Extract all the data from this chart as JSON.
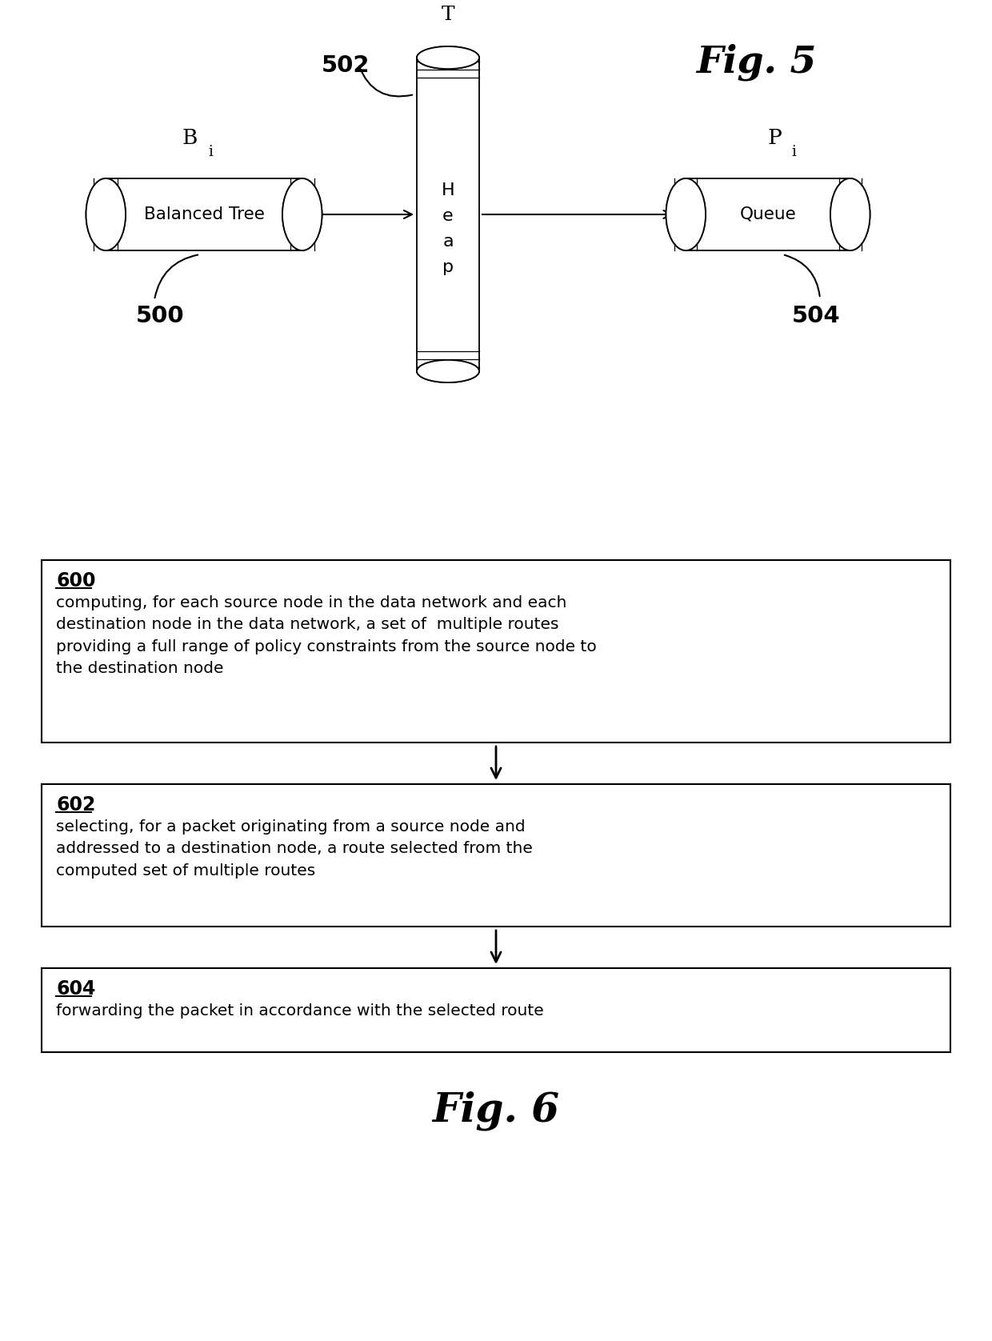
{
  "fig_title_5": "Fig. 5",
  "fig_title_6": "Fig. 6",
  "background_color": "#ffffff",
  "balanced_tree_label": "Balanced Tree",
  "heap_top_label": "T",
  "queue_label": "Queue",
  "bi_label": "B",
  "bi_sub": "i",
  "pi_label": "P",
  "pi_sub": "i",
  "ref_500": "500",
  "ref_502": "502",
  "ref_504": "504",
  "box_600_id": "600",
  "box_600_text": "computing, for each source node in the data network and each\ndestination node in the data network, a set of  multiple routes\nproviding a full range of policy constraints from the source node to\nthe destination node",
  "box_602_id": "602",
  "box_602_text": "selecting, for a packet originating from a source node and\naddressed to a destination node, a route selected from the\ncomputed set of multiple routes",
  "box_604_id": "604",
  "box_604_text": "forwarding the packet in accordance with the selected route"
}
